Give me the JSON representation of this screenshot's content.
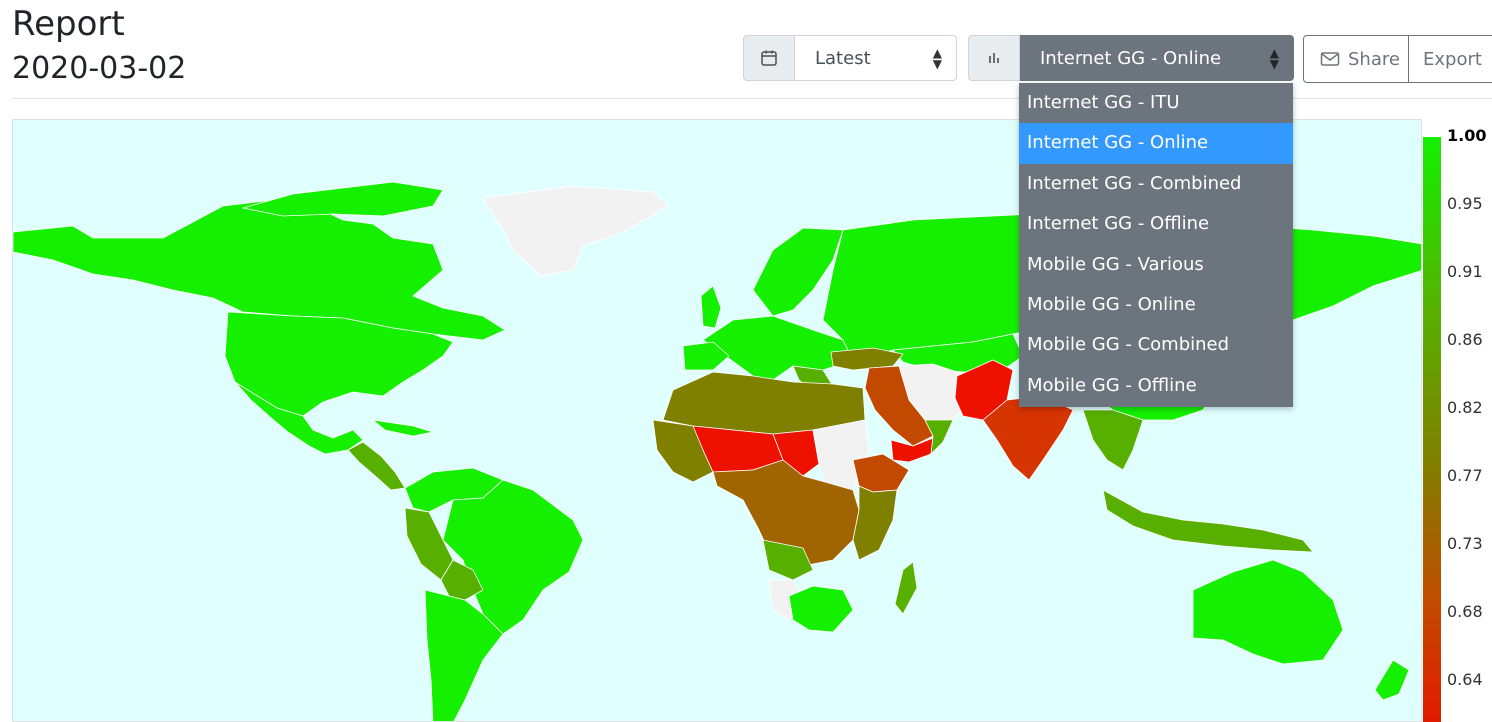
{
  "header": {
    "title": "Report",
    "date": "2020-03-02"
  },
  "toolbar": {
    "date_select": {
      "value": "Latest",
      "icon": "calendar-icon"
    },
    "metric_select": {
      "value": "Internet GG - Online",
      "icon": "bar-chart-icon"
    },
    "share_label": "Share",
    "export_label": "Export"
  },
  "dropdown": {
    "options": [
      "Internet GG - ITU",
      "Internet GG - Online",
      "Internet GG - Combined",
      "Internet GG - Offline",
      "Mobile GG - Various",
      "Mobile GG - Online",
      "Mobile GG - Combined",
      "Mobile GG - Offline"
    ],
    "selected_index": 1,
    "selected_color": "#3399ff",
    "background_color": "#6c757d"
  },
  "map": {
    "ocean_color": "#e0ffff",
    "no_data_color": "#f2f2f2",
    "scale_colors": [
      "#14f000",
      "#808000",
      "#e21a00"
    ]
  },
  "legend": {
    "labels": [
      "1.00",
      "0.95",
      "0.91",
      "0.86",
      "0.82",
      "0.77",
      "0.73",
      "0.68",
      "0.64"
    ]
  }
}
